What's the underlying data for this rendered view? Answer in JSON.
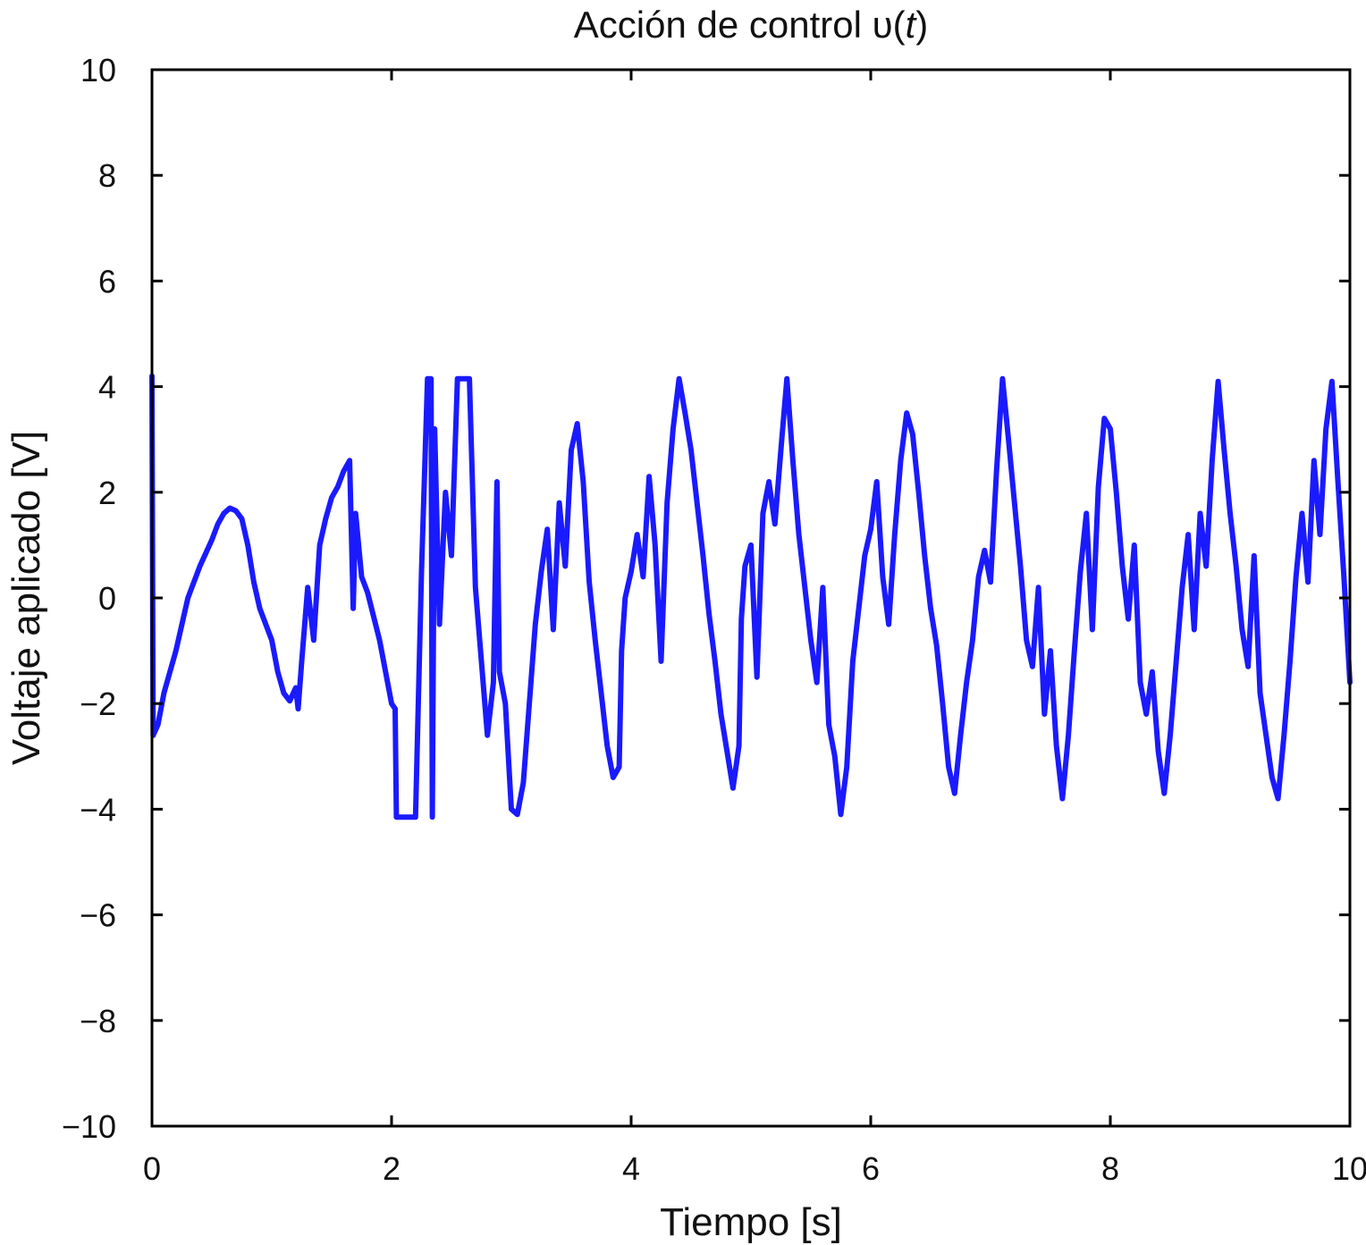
{
  "chart_data": {
    "type": "line",
    "title": "Acción de control υ(t)",
    "title_parts": {
      "prefix": "Acción de control υ(",
      "var": "t",
      "suffix": ")"
    },
    "xlabel": "Tiempo [s]",
    "ylabel": "Voltaje aplicado [V]",
    "xlim": [
      0,
      10
    ],
    "ylim": [
      -10,
      10
    ],
    "xticks": [
      0,
      2,
      4,
      6,
      8,
      10
    ],
    "xtick_labels": [
      "0",
      "2",
      "4",
      "6",
      "8",
      "10"
    ],
    "yticks": [
      -10,
      -8,
      -6,
      -4,
      -2,
      0,
      2,
      4,
      6,
      8,
      10
    ],
    "ytick_labels": [
      "−10",
      "−8",
      "−6",
      "−4",
      "−2",
      "0",
      "2",
      "4",
      "6",
      "8",
      "10"
    ],
    "grid": false,
    "line_color": "#1a1aff",
    "axes_color": "#000000",
    "series": [
      {
        "points": [
          [
            0.0,
            4.2
          ],
          [
            0.01,
            -2.6
          ],
          [
            0.05,
            -2.4
          ],
          [
            0.1,
            -1.8
          ],
          [
            0.2,
            -1.0
          ],
          [
            0.3,
            0.0
          ],
          [
            0.4,
            0.6
          ],
          [
            0.5,
            1.1
          ],
          [
            0.55,
            1.4
          ],
          [
            0.6,
            1.6
          ],
          [
            0.65,
            1.7
          ],
          [
            0.7,
            1.65
          ],
          [
            0.75,
            1.5
          ],
          [
            0.8,
            1.0
          ],
          [
            0.85,
            0.3
          ],
          [
            0.9,
            -0.2
          ],
          [
            1.0,
            -0.8
          ],
          [
            1.05,
            -1.4
          ],
          [
            1.1,
            -1.8
          ],
          [
            1.15,
            -1.95
          ],
          [
            1.2,
            -1.7
          ],
          [
            1.22,
            -2.1
          ],
          [
            1.25,
            -1.2
          ],
          [
            1.3,
            0.2
          ],
          [
            1.35,
            -0.8
          ],
          [
            1.4,
            1.0
          ],
          [
            1.45,
            1.5
          ],
          [
            1.5,
            1.9
          ],
          [
            1.55,
            2.1
          ],
          [
            1.6,
            2.4
          ],
          [
            1.65,
            2.6
          ],
          [
            1.68,
            -0.2
          ],
          [
            1.7,
            1.6
          ],
          [
            1.75,
            0.4
          ],
          [
            1.8,
            0.1
          ],
          [
            1.9,
            -0.8
          ],
          [
            1.95,
            -1.4
          ],
          [
            2.0,
            -2.0
          ],
          [
            2.03,
            -2.1
          ],
          [
            2.04,
            -4.15
          ],
          [
            2.2,
            -4.15
          ],
          [
            2.25,
            0.5
          ],
          [
            2.3,
            4.15
          ],
          [
            2.33,
            4.15
          ],
          [
            2.34,
            -4.15
          ],
          [
            2.36,
            3.2
          ],
          [
            2.4,
            -0.5
          ],
          [
            2.45,
            2.0
          ],
          [
            2.5,
            0.8
          ],
          [
            2.55,
            4.15
          ],
          [
            2.65,
            4.15
          ],
          [
            2.7,
            0.2
          ],
          [
            2.75,
            -1.2
          ],
          [
            2.8,
            -2.6
          ],
          [
            2.85,
            -1.6
          ],
          [
            2.88,
            2.2
          ],
          [
            2.9,
            -1.4
          ],
          [
            2.95,
            -2.0
          ],
          [
            3.0,
            -4.0
          ],
          [
            3.05,
            -4.1
          ],
          [
            3.1,
            -3.5
          ],
          [
            3.15,
            -2.0
          ],
          [
            3.2,
            -0.5
          ],
          [
            3.25,
            0.5
          ],
          [
            3.3,
            1.3
          ],
          [
            3.35,
            -0.6
          ],
          [
            3.4,
            1.8
          ],
          [
            3.45,
            0.6
          ],
          [
            3.5,
            2.8
          ],
          [
            3.55,
            3.3
          ],
          [
            3.6,
            2.2
          ],
          [
            3.65,
            0.3
          ],
          [
            3.7,
            -0.8
          ],
          [
            3.75,
            -1.8
          ],
          [
            3.8,
            -2.8
          ],
          [
            3.85,
            -3.4
          ],
          [
            3.9,
            -3.2
          ],
          [
            3.92,
            -1.0
          ],
          [
            3.95,
            0.0
          ],
          [
            4.0,
            0.5
          ],
          [
            4.05,
            1.2
          ],
          [
            4.1,
            0.4
          ],
          [
            4.15,
            2.3
          ],
          [
            4.2,
            1.0
          ],
          [
            4.25,
            -1.2
          ],
          [
            4.3,
            1.8
          ],
          [
            4.35,
            3.2
          ],
          [
            4.4,
            4.15
          ],
          [
            4.45,
            3.5
          ],
          [
            4.5,
            2.8
          ],
          [
            4.55,
            1.8
          ],
          [
            4.6,
            0.8
          ],
          [
            4.65,
            -0.3
          ],
          [
            4.7,
            -1.2
          ],
          [
            4.75,
            -2.2
          ],
          [
            4.8,
            -2.9
          ],
          [
            4.85,
            -3.6
          ],
          [
            4.9,
            -2.8
          ],
          [
            4.92,
            -0.4
          ],
          [
            4.95,
            0.6
          ],
          [
            5.0,
            1.0
          ],
          [
            5.05,
            -1.5
          ],
          [
            5.1,
            1.6
          ],
          [
            5.15,
            2.2
          ],
          [
            5.2,
            1.4
          ],
          [
            5.25,
            2.8
          ],
          [
            5.3,
            4.15
          ],
          [
            5.35,
            2.6
          ],
          [
            5.4,
            1.2
          ],
          [
            5.45,
            0.2
          ],
          [
            5.5,
            -0.8
          ],
          [
            5.55,
            -1.6
          ],
          [
            5.6,
            0.2
          ],
          [
            5.65,
            -2.4
          ],
          [
            5.7,
            -3.0
          ],
          [
            5.75,
            -4.1
          ],
          [
            5.8,
            -3.2
          ],
          [
            5.85,
            -1.2
          ],
          [
            5.9,
            -0.2
          ],
          [
            5.95,
            0.8
          ],
          [
            6.0,
            1.3
          ],
          [
            6.05,
            2.2
          ],
          [
            6.1,
            0.4
          ],
          [
            6.15,
            -0.5
          ],
          [
            6.2,
            1.2
          ],
          [
            6.25,
            2.6
          ],
          [
            6.3,
            3.5
          ],
          [
            6.35,
            3.1
          ],
          [
            6.4,
            2.0
          ],
          [
            6.45,
            0.8
          ],
          [
            6.5,
            -0.2
          ],
          [
            6.55,
            -0.9
          ],
          [
            6.6,
            -2.0
          ],
          [
            6.65,
            -3.2
          ],
          [
            6.7,
            -3.7
          ],
          [
            6.75,
            -2.6
          ],
          [
            6.8,
            -1.6
          ],
          [
            6.85,
            -0.8
          ],
          [
            6.9,
            0.4
          ],
          [
            6.95,
            0.9
          ],
          [
            7.0,
            0.3
          ],
          [
            7.05,
            2.4
          ],
          [
            7.1,
            4.15
          ],
          [
            7.15,
            3.0
          ],
          [
            7.2,
            1.8
          ],
          [
            7.25,
            0.6
          ],
          [
            7.3,
            -0.8
          ],
          [
            7.35,
            -1.3
          ],
          [
            7.4,
            0.2
          ],
          [
            7.45,
            -2.2
          ],
          [
            7.5,
            -1.0
          ],
          [
            7.55,
            -2.8
          ],
          [
            7.6,
            -3.8
          ],
          [
            7.65,
            -2.6
          ],
          [
            7.7,
            -1.0
          ],
          [
            7.75,
            0.5
          ],
          [
            7.8,
            1.6
          ],
          [
            7.85,
            -0.6
          ],
          [
            7.9,
            2.1
          ],
          [
            7.95,
            3.4
          ],
          [
            8.0,
            3.2
          ],
          [
            8.05,
            2.0
          ],
          [
            8.1,
            0.6
          ],
          [
            8.15,
            -0.4
          ],
          [
            8.2,
            1.0
          ],
          [
            8.25,
            -1.6
          ],
          [
            8.3,
            -2.2
          ],
          [
            8.35,
            -1.4
          ],
          [
            8.4,
            -2.9
          ],
          [
            8.45,
            -3.7
          ],
          [
            8.5,
            -2.6
          ],
          [
            8.55,
            -1.2
          ],
          [
            8.6,
            0.2
          ],
          [
            8.65,
            1.2
          ],
          [
            8.7,
            -0.6
          ],
          [
            8.75,
            1.6
          ],
          [
            8.8,
            0.6
          ],
          [
            8.85,
            2.6
          ],
          [
            8.9,
            4.1
          ],
          [
            8.95,
            2.8
          ],
          [
            9.0,
            1.6
          ],
          [
            9.05,
            0.6
          ],
          [
            9.1,
            -0.6
          ],
          [
            9.15,
            -1.3
          ],
          [
            9.2,
            0.8
          ],
          [
            9.25,
            -1.8
          ],
          [
            9.3,
            -2.6
          ],
          [
            9.35,
            -3.4
          ],
          [
            9.4,
            -3.8
          ],
          [
            9.45,
            -2.6
          ],
          [
            9.5,
            -1.2
          ],
          [
            9.55,
            0.4
          ],
          [
            9.6,
            1.6
          ],
          [
            9.65,
            0.3
          ],
          [
            9.7,
            2.6
          ],
          [
            9.75,
            1.2
          ],
          [
            9.8,
            3.2
          ],
          [
            9.85,
            4.1
          ],
          [
            9.9,
            2.2
          ],
          [
            9.95,
            0.4
          ],
          [
            10.0,
            -1.6
          ]
        ]
      }
    ]
  }
}
